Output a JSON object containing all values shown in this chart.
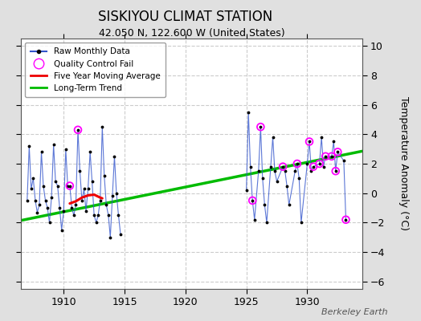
{
  "title": "SISKIYOU CLIMAT STATION",
  "subtitle": "42.050 N, 122.600 W (United States)",
  "ylabel": "Temperature Anomaly (°C)",
  "watermark": "Berkeley Earth",
  "xlim": [
    1906.5,
    1934.5
  ],
  "ylim": [
    -6.5,
    10.5
  ],
  "yticks": [
    -6,
    -4,
    -2,
    0,
    2,
    4,
    6,
    8,
    10
  ],
  "xticks": [
    1910,
    1915,
    1920,
    1925,
    1930
  ],
  "fig_bg_color": "#e0e0e0",
  "plot_bg_color": "#ffffff",
  "grid_color": "#cccccc",
  "line_color": "#3355cc",
  "trend_color": "#00bb00",
  "ma_color": "#ee0000",
  "qc_color": "magenta",
  "left_data_x": [
    1907.0,
    1907.17,
    1907.33,
    1907.5,
    1907.67,
    1907.83,
    1908.0,
    1908.17,
    1908.33,
    1908.5,
    1908.67,
    1908.83,
    1909.0,
    1909.17,
    1909.33,
    1909.5,
    1909.67,
    1909.83,
    1910.0,
    1910.17,
    1910.33,
    1910.5,
    1910.67,
    1910.83,
    1911.0,
    1911.17,
    1911.33,
    1911.5,
    1911.67,
    1911.83,
    1912.0,
    1912.17,
    1912.33,
    1912.5,
    1912.67,
    1912.83,
    1913.0,
    1913.17,
    1913.33,
    1913.5,
    1913.67,
    1913.83,
    1914.0,
    1914.17,
    1914.33,
    1914.5,
    1914.67
  ],
  "left_data_y": [
    -0.5,
    3.2,
    0.3,
    1.0,
    -0.5,
    -1.3,
    -0.8,
    2.8,
    0.5,
    -0.5,
    -1.0,
    -2.0,
    -0.3,
    3.3,
    0.8,
    0.5,
    -1.0,
    -2.5,
    -1.2,
    3.0,
    0.5,
    0.5,
    -1.0,
    -1.5,
    -0.8,
    4.3,
    1.5,
    -0.5,
    0.3,
    -1.2,
    0.3,
    2.8,
    0.8,
    -1.5,
    -2.0,
    -1.5,
    -0.5,
    4.5,
    1.2,
    -0.8,
    -1.5,
    -3.0,
    -0.2,
    2.5,
    0.0,
    -1.5,
    -2.8
  ],
  "right_data_x": [
    1925.0,
    1925.17,
    1925.33,
    1925.5,
    1925.67,
    1926.0,
    1926.17,
    1926.33,
    1926.5,
    1926.67,
    1927.0,
    1927.17,
    1927.33,
    1927.5,
    1928.0,
    1928.17,
    1928.33,
    1928.5,
    1929.0,
    1929.17,
    1929.33,
    1929.5,
    1930.0,
    1930.17,
    1930.33,
    1930.5,
    1931.0,
    1931.17,
    1931.33,
    1931.5,
    1932.0,
    1932.17,
    1932.33,
    1932.5,
    1933.0,
    1933.17
  ],
  "right_data_y": [
    0.2,
    5.5,
    1.8,
    -0.5,
    -1.8,
    1.5,
    4.5,
    1.0,
    -0.8,
    -2.0,
    1.8,
    3.8,
    1.5,
    0.8,
    1.8,
    1.5,
    0.5,
    -0.8,
    1.5,
    2.0,
    1.0,
    -2.0,
    2.0,
    3.5,
    1.5,
    1.8,
    2.0,
    3.8,
    1.8,
    2.5,
    2.5,
    3.5,
    1.5,
    2.8,
    2.2,
    -1.8
  ],
  "qc_x": [
    1910.5,
    1911.17,
    1925.5,
    1926.17,
    1928.0,
    1929.17,
    1930.17,
    1930.5,
    1931.0,
    1931.5,
    1932.0,
    1932.33,
    1932.5,
    1933.17
  ],
  "qc_y": [
    0.5,
    4.3,
    -0.5,
    4.5,
    1.8,
    2.0,
    3.5,
    1.8,
    2.0,
    2.5,
    2.5,
    1.5,
    2.8,
    -1.8
  ],
  "ma_x": [
    1910.5,
    1911.0,
    1911.5,
    1912.0,
    1912.5,
    1913.0,
    1913.17
  ],
  "ma_y": [
    -0.7,
    -0.55,
    -0.3,
    -0.15,
    -0.1,
    -0.3,
    -0.35
  ],
  "trend_x": [
    1906.5,
    1934.5
  ],
  "trend_y": [
    -1.85,
    2.85
  ]
}
